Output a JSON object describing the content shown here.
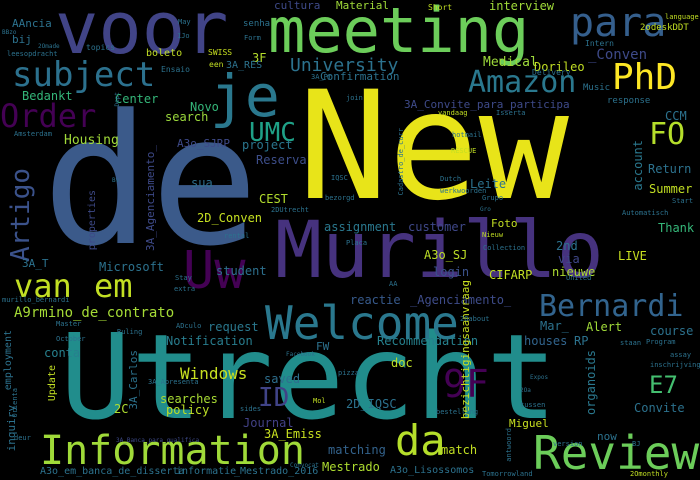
{
  "cloud": {
    "words": [
      {
        "text": "New",
        "color": "#e8e419"
      },
      {
        "text": "de",
        "color": "#3b5a8a"
      },
      {
        "text": "Utrecht",
        "color": "#218d8c"
      },
      {
        "text": "Murillo",
        "color": "#46327e"
      },
      {
        "text": "voor",
        "color": "#414487"
      },
      {
        "text": "meeting",
        "color": "#6ccd5a"
      },
      {
        "text": "Uw",
        "color": "#440154"
      },
      {
        "text": "je",
        "color": "#2a788e"
      },
      {
        "text": "Welcome",
        "color": "#2a788e"
      },
      {
        "text": "Information",
        "color": "#a0da39"
      },
      {
        "text": "da",
        "color": "#b5de2b"
      },
      {
        "text": "Review",
        "color": "#6ccd5a"
      },
      {
        "text": "PhD",
        "color": "#fde725"
      },
      {
        "text": "para",
        "color": "#355f8d"
      },
      {
        "text": "subject",
        "color": "#2c718e"
      },
      {
        "text": "Amazon",
        "color": "#2a788e"
      },
      {
        "text": "Order",
        "color": "#440154"
      },
      {
        "text": "van",
        "color": "#c2df23"
      },
      {
        "text": "em",
        "color": "#c2df23"
      },
      {
        "text": "Bernardi",
        "color": "#32648e"
      },
      {
        "text": "9F",
        "color": "#440154"
      },
      {
        "text": "UMC",
        "color": "#1fa187"
      },
      {
        "text": "Artigo",
        "color": "#3b528b"
      },
      {
        "text": "FO",
        "color": "#b5de2b"
      },
      {
        "text": "E7",
        "color": "#44bf70"
      },
      {
        "text": "ID",
        "color": "#404387"
      },
      {
        "text": "University",
        "color": "#2c728e"
      },
      {
        "text": "_Conven",
        "color": "#3e4a89"
      },
      {
        "text": "A9rmino_de_contrato",
        "color": "#a5db36"
      },
      {
        "text": "Windows",
        "color": "#c8e020"
      },
      {
        "text": "Medical",
        "color": "#9dd93b"
      },
      {
        "text": "Material",
        "color": "#a0da39"
      },
      {
        "text": "cultura",
        "color": "#3e4a89"
      },
      {
        "text": "interview",
        "color": "#a0da39"
      },
      {
        "text": "Bedankt",
        "color": "#34b679"
      },
      {
        "text": "Housing",
        "color": "#a0da39"
      },
      {
        "text": "Center",
        "color": "#34b679"
      },
      {
        "text": "Novo",
        "color": "#34b679"
      },
      {
        "text": "search",
        "color": "#9bd93c"
      },
      {
        "text": "project",
        "color": "#2a768e"
      },
      {
        "text": "Reserva",
        "color": "#3d4e8a"
      },
      {
        "text": "sua",
        "color": "#2e6e8e"
      },
      {
        "text": "CEST",
        "color": "#b2dd2d"
      },
      {
        "text": "2D_Conven",
        "color": "#c5e021"
      },
      {
        "text": "assignment",
        "color": "#2a788e"
      },
      {
        "text": "customer",
        "color": "#3f4889"
      },
      {
        "text": "A3o_SJ",
        "color": "#bddf26"
      },
      {
        "text": "login",
        "color": "#3b528b"
      },
      {
        "text": "CIFARP",
        "color": "#c2df23"
      },
      {
        "text": "LIVE",
        "color": "#c8e020"
      },
      {
        "text": "Thank",
        "color": "#35b779"
      },
      {
        "text": "Microsoft",
        "color": "#2c728e"
      },
      {
        "text": "student",
        "color": "#2d708e"
      },
      {
        "text": "reactie",
        "color": "#375a8c"
      },
      {
        "text": "_Agenciamento_",
        "color": "#3e4c8a"
      },
      {
        "text": "request",
        "color": "#2a788e"
      },
      {
        "text": "Notification",
        "color": "#287d8e"
      },
      {
        "text": "Recommendation",
        "color": "#26818e"
      },
      {
        "text": "conta",
        "color": "#27808e"
      },
      {
        "text": "saved",
        "color": "#2e6f8e"
      },
      {
        "text": "searches",
        "color": "#a8db34"
      },
      {
        "text": "policy",
        "color": "#bddf26"
      },
      {
        "text": "Journal",
        "color": "#424186"
      },
      {
        "text": "2D_IQSC",
        "color": "#2c728e"
      },
      {
        "text": "3A_Emiss",
        "color": "#c8e020"
      },
      {
        "text": "matching",
        "color": "#33638d"
      },
      {
        "text": "Mestrado",
        "color": "#addc30"
      },
      {
        "text": "match",
        "color": "#c2df23"
      },
      {
        "text": "doc",
        "color": "#bddf26"
      },
      {
        "text": "organoids",
        "color": "#2a788e"
      },
      {
        "text": "Convite",
        "color": "#2c728e"
      },
      {
        "text": "course",
        "color": "#2c728e"
      },
      {
        "text": "Alert",
        "color": "#a0da39"
      },
      {
        "text": "RP",
        "color": "#2c728e"
      },
      {
        "text": "houses",
        "color": "#32658e"
      },
      {
        "text": "Mar_",
        "color": "#2c728e"
      },
      {
        "text": "2nd",
        "color": "#2c728e"
      },
      {
        "text": "via",
        "color": "#3f4788"
      },
      {
        "text": "nieuwe",
        "color": "#addc30"
      },
      {
        "text": "Leite",
        "color": "#2c728e"
      },
      {
        "text": "Return",
        "color": "#2c728e"
      },
      {
        "text": "Summer",
        "color": "#c2df23"
      },
      {
        "text": "account",
        "color": "#2a788e"
      },
      {
        "text": "CCM",
        "color": "#2c728e"
      },
      {
        "text": "Dorileo",
        "color": "#c2df23"
      },
      {
        "text": "Confirmation",
        "color": "#2c728e"
      },
      {
        "text": "3A_Convite_para_participa",
        "color": "#3e4a89"
      },
      {
        "text": "A3o_SJRP",
        "color": "#3e4a89"
      },
      {
        "text": "3A_Agenciamento_",
        "color": "#3e4a89"
      },
      {
        "text": "3A_T",
        "color": "#2c728e"
      },
      {
        "text": "3F",
        "color": "#b5de2b"
      },
      {
        "text": "2C",
        "color": "#addc30"
      },
      {
        "text": "3A_Carlos",
        "color": "#2c728e"
      },
      {
        "text": "FW",
        "color": "#2c728e"
      },
      {
        "text": "Foto",
        "color": "#c2df23"
      },
      {
        "text": "Miguel",
        "color": "#c8e020"
      },
      {
        "text": "now",
        "color": "#2c728e"
      },
      {
        "text": "bezichtigingsaanvraag",
        "color": "#c8e020"
      },
      {
        "text": "A3o_Lisossomos",
        "color": "#2c728e"
      },
      {
        "text": "A3o_em_banca_de_disserta",
        "color": "#2c728e"
      },
      {
        "text": "informatie",
        "color": "#2c728e"
      },
      {
        "text": "_Mestrado_2016",
        "color": "#2c728e"
      },
      {
        "text": "inquiry",
        "color": "#2c728e"
      },
      {
        "text": "employment",
        "color": "#2c728e"
      },
      {
        "text": "Update",
        "color": "#c2df23"
      },
      {
        "text": "properties",
        "color": "#3e4a89"
      },
      {
        "text": "AAncia",
        "color": "#2c728e"
      },
      {
        "text": "bij",
        "color": "#2c728e"
      },
      {
        "text": "boleto",
        "color": "#c2df23"
      },
      {
        "text": "3A_RES",
        "color": "#2c728e"
      },
      {
        "text": "senha",
        "color": "#2c728e"
      },
      {
        "text": "Music",
        "color": "#2c728e"
      },
      {
        "text": "response",
        "color": "#2c728e"
      },
      {
        "text": "Ensaio",
        "color": "#2c728e"
      },
      {
        "text": "topics",
        "color": "#2c728e"
      },
      {
        "text": "SWISS",
        "color": "#c8e020"
      },
      {
        "text": "een",
        "color": "#c2df23"
      },
      {
        "text": "Delivery",
        "color": "#2c728e"
      },
      {
        "text": "Intern",
        "color": "#2c728e"
      },
      {
        "text": "2odeskDDT",
        "color": "#c2df23"
      },
      {
        "text": "Short",
        "color": "#c2df23"
      },
      {
        "text": "language",
        "color": "#c2df23"
      },
      {
        "text": "Isserta",
        "color": "#2c728e"
      },
      {
        "text": "vandaag",
        "color": "#c2df23"
      },
      {
        "text": "hotmail",
        "color": "#2c728e"
      },
      {
        "text": "RESCUE",
        "color": "#c2df23"
      },
      {
        "text": "Dutch",
        "color": "#2c728e"
      },
      {
        "text": "werkwoorden",
        "color": "#2c728e"
      },
      {
        "text": "bezorgd",
        "color": "#2c728e"
      },
      {
        "text": "IQSC",
        "color": "#2c728e"
      },
      {
        "text": "2DUtrecht",
        "color": "#2c728e"
      },
      {
        "text": "rental",
        "color": "#2c728e"
      },
      {
        "text": "Placa",
        "color": "#2c728e"
      },
      {
        "text": "Nieuw",
        "color": "#c2df23"
      },
      {
        "text": "Collection",
        "color": "#2c728e"
      },
      {
        "text": "United",
        "color": "#2c728e"
      },
      {
        "text": "Stay",
        "color": "#2c728e"
      },
      {
        "text": "extra",
        "color": "#2c728e"
      },
      {
        "text": "Master",
        "color": "#2c728e"
      },
      {
        "text": "Ruling",
        "color": "#2c728e"
      },
      {
        "text": "ADculo",
        "color": "#2c728e"
      },
      {
        "text": "pizza",
        "color": "#2c728e"
      },
      {
        "text": "tussen",
        "color": "#2c728e"
      },
      {
        "text": "staan",
        "color": "#2c728e"
      },
      {
        "text": "Program",
        "color": "#2c728e"
      },
      {
        "text": "assay",
        "color": "#2c728e"
      },
      {
        "text": "inschrijving",
        "color": "#2c728e"
      },
      {
        "text": "BJ",
        "color": "#2c728e"
      },
      {
        "text": "version",
        "color": "#2c728e"
      },
      {
        "text": "Tomorrowland",
        "color": "#2c728e"
      },
      {
        "text": "2Omonthly",
        "color": "#c2df23"
      },
      {
        "text": "bestelling",
        "color": "#2c728e"
      },
      {
        "text": "antwoord",
        "color": "#2c728e"
      },
      {
        "text": "3A_Banca_para_qualifica",
        "color": "#3e4a89"
      },
      {
        "text": "3A_Apresenta",
        "color": "#2c728e"
      },
      {
        "text": "Amsterdam",
        "color": "#2c728e"
      },
      {
        "text": "murillo_bernardi",
        "color": "#2c728e"
      },
      {
        "text": "leesopdracht",
        "color": "#2c728e"
      },
      {
        "text": "Cadastro_de_curr",
        "color": "#2c728e"
      },
      {
        "text": "Automatisch",
        "color": "#2c728e"
      },
      {
        "text": "Grupo",
        "color": "#2c728e"
      },
      {
        "text": "Start",
        "color": "#2c728e"
      },
      {
        "text": "Mol",
        "color": "#c2df23"
      },
      {
        "text": "deur",
        "color": "#2c728e"
      },
      {
        "text": "Orienta",
        "color": "#2c728e"
      },
      {
        "text": "sides",
        "color": "#2c728e"
      },
      {
        "text": "Facebook",
        "color": "#2c728e"
      },
      {
        "text": "October",
        "color": "#2c728e"
      },
      {
        "text": "join",
        "color": "#2c728e"
      },
      {
        "text": "Form",
        "color": "#2c728e"
      },
      {
        "text": "May",
        "color": "#2c728e"
      },
      {
        "text": "1Jo",
        "color": "#2c728e"
      },
      {
        "text": "BBzo",
        "color": "#2c728e"
      },
      {
        "text": "2Omade",
        "color": "#2c728e"
      },
      {
        "text": "3A_Pr",
        "color": "#2c728e"
      },
      {
        "text": "Gro",
        "color": "#2c728e"
      },
      {
        "text": "Convocat",
        "color": "#2c728e"
      },
      {
        "text": "2Oabout",
        "color": "#2c728e"
      },
      {
        "text": "AA",
        "color": "#2c728e"
      },
      {
        "text": "Dept",
        "color": "#2c728e"
      },
      {
        "text": "Expos",
        "color": "#2c728e"
      },
      {
        "text": "Bv",
        "color": "#2c728e"
      },
      {
        "text": "2Oa",
        "color": "#2c728e"
      }
    ]
  }
}
